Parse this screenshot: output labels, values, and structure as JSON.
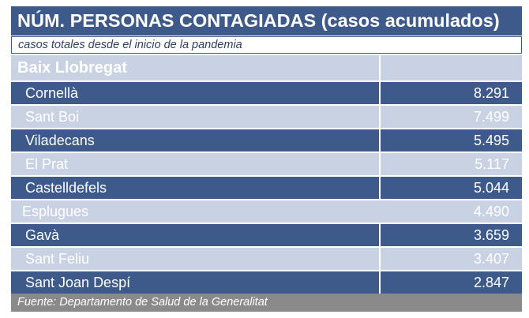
{
  "title": "NÚM. PERSONAS CONTAGIADAS (casos acumulados)",
  "subtitle": "casos totales desde el inicio de la pandemia",
  "region": "Baix Llobregat",
  "rows": [
    {
      "name": "Cornellà",
      "value": "8.291",
      "shade": "dark"
    },
    {
      "name": "Sant Boi",
      "value": "7.499",
      "shade": "light"
    },
    {
      "name": "Viladecans",
      "value": "5.495",
      "shade": "dark"
    },
    {
      "name": "El Prat",
      "value": "5.117",
      "shade": "light"
    },
    {
      "name": "Castelldefels",
      "value": "5.044",
      "shade": "dark"
    },
    {
      "name": "Esplugues",
      "value": "4.490",
      "shade": "light"
    },
    {
      "name": "Gavà",
      "value": "3.659",
      "shade": "dark"
    },
    {
      "name": "Sant Feliu",
      "value": "3.407",
      "shade": "light"
    },
    {
      "name": "Sant Joan Despí",
      "value": "2.847",
      "shade": "dark"
    }
  ],
  "footer": "Fuente: Departamento de Salud de la Generalitat",
  "colors": {
    "dark_row": "#3d5a8a",
    "light_row": "#c9d2e3",
    "footer": "#8a8a8a"
  }
}
